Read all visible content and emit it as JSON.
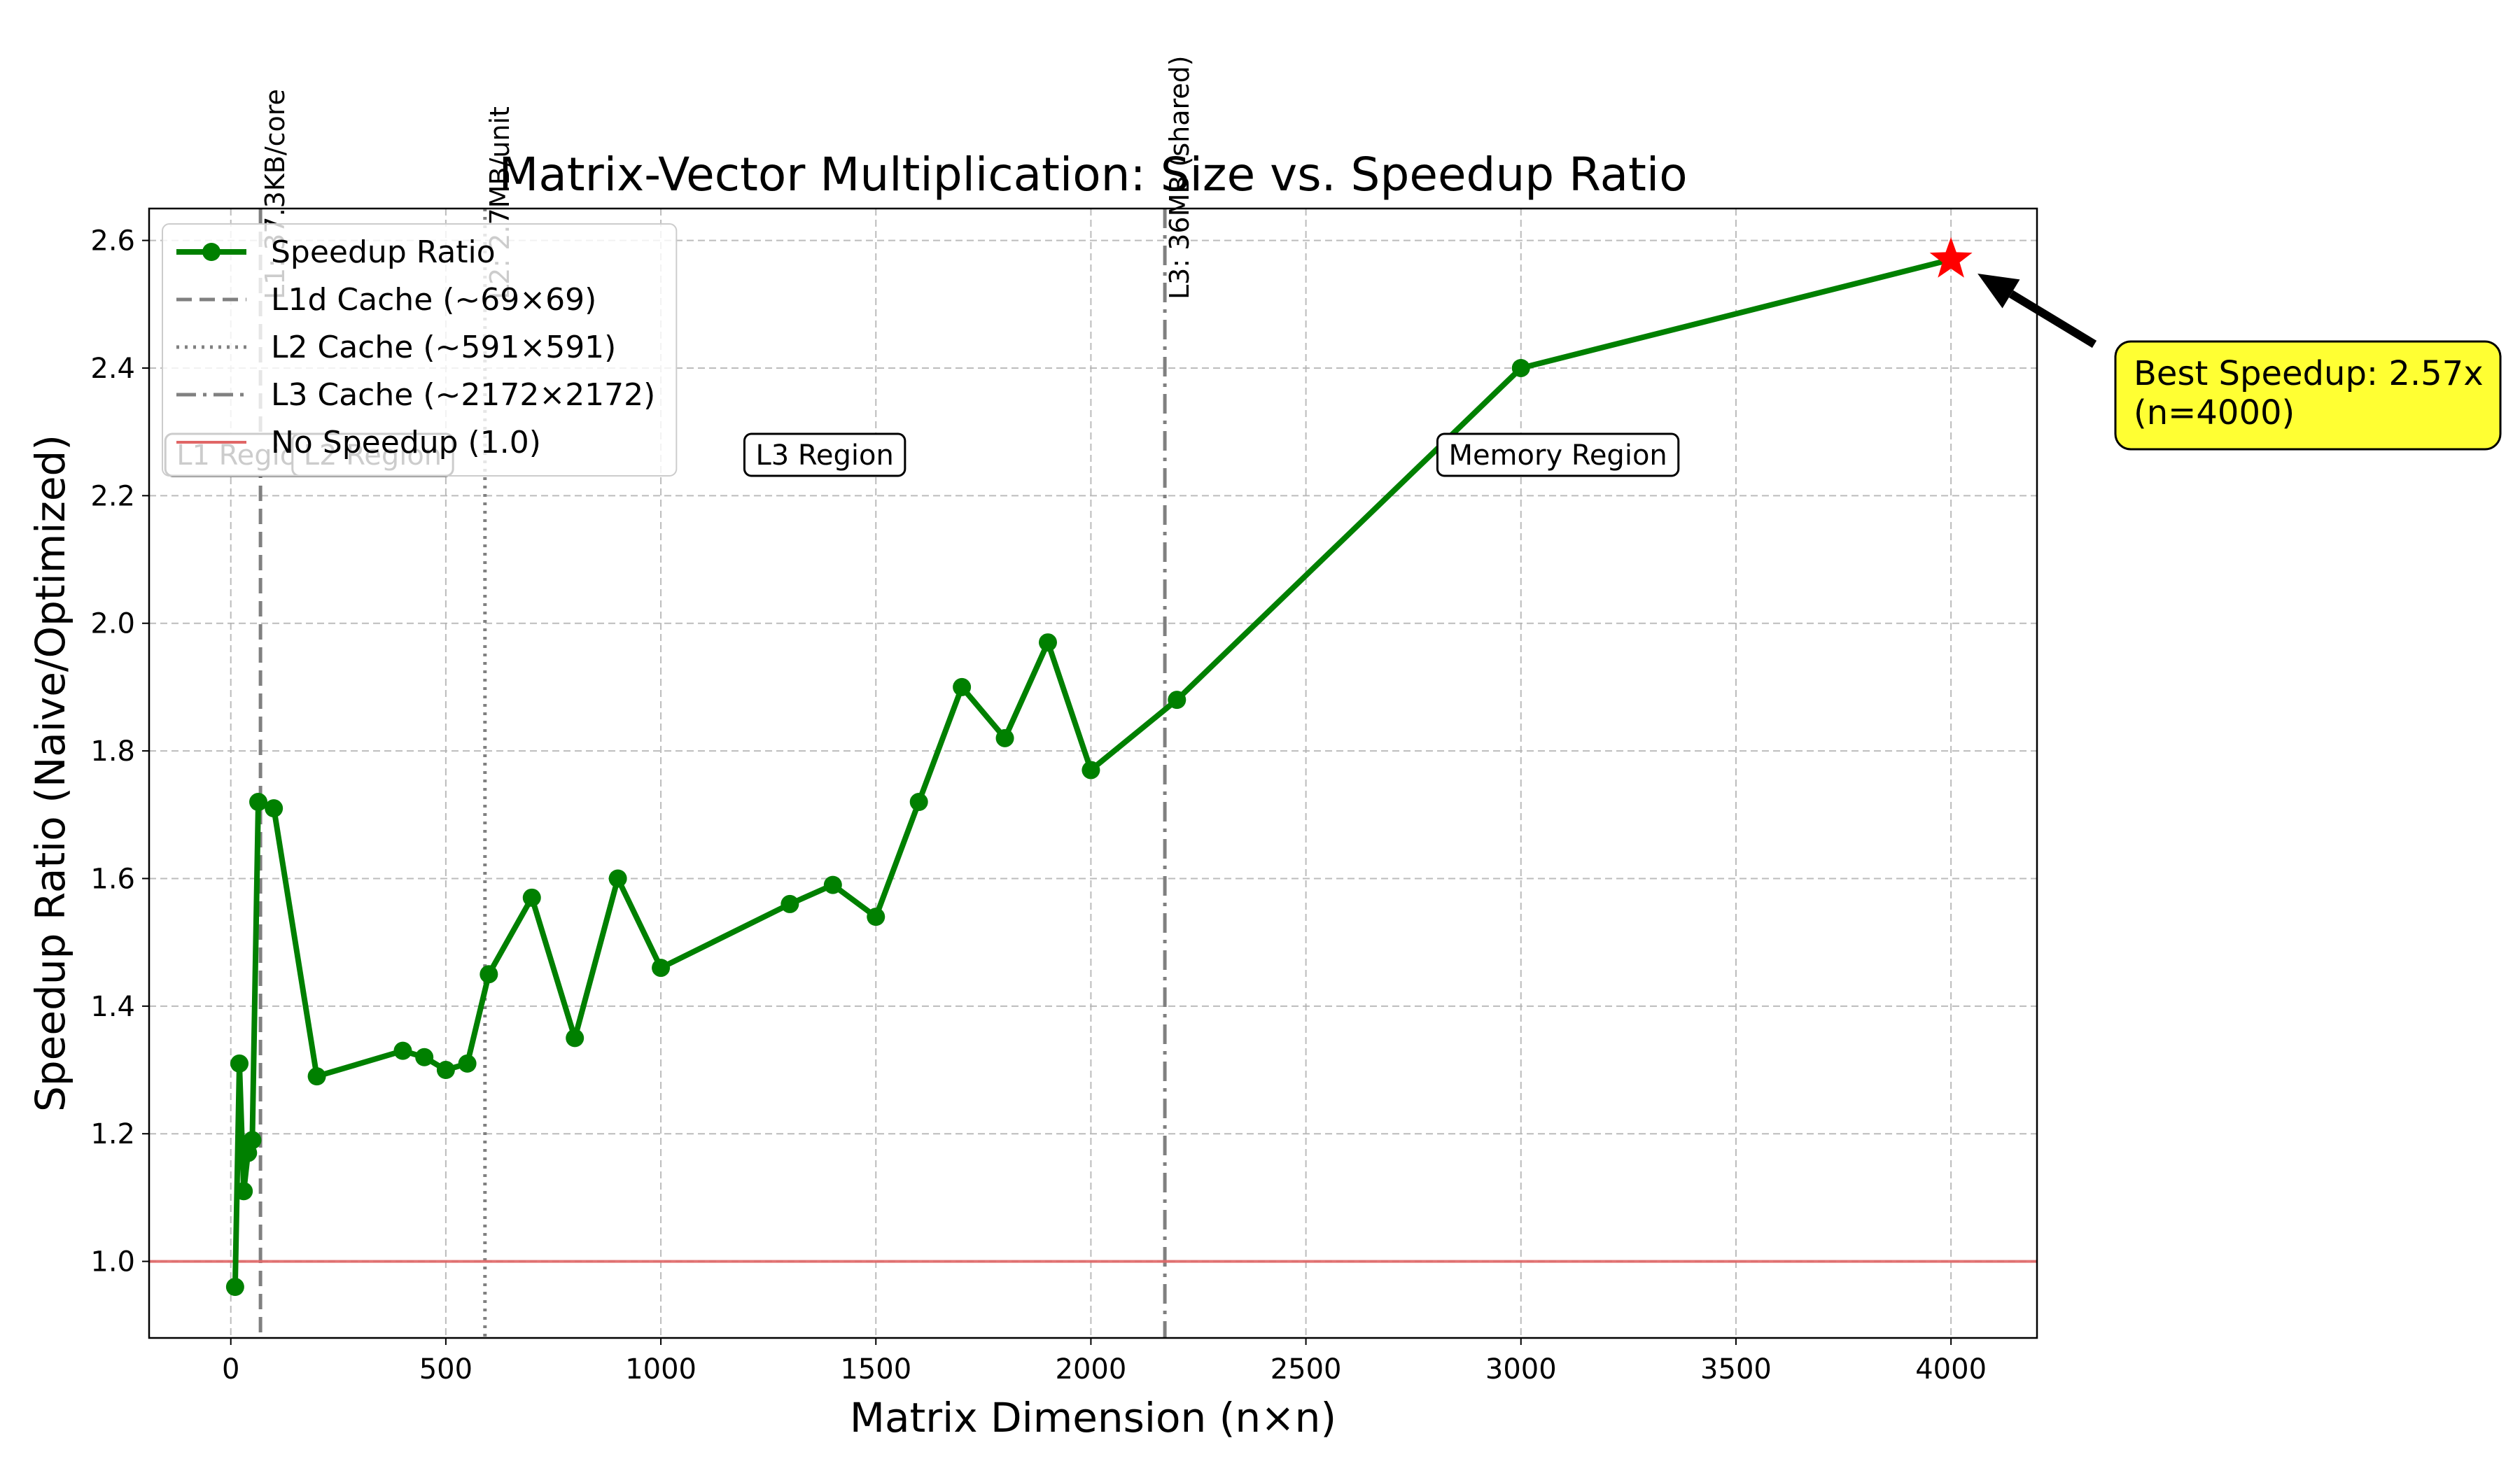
{
  "chart_data": {
    "type": "line",
    "title": "Matrix-Vector Multiplication: Size vs. Speedup Ratio",
    "xlabel": "Matrix Dimension (n×n)",
    "ylabel": "Speedup Ratio (Naive/Optimized)",
    "xlim": [
      -190,
      4200
    ],
    "ylim": [
      0.88,
      2.65
    ],
    "xticks": [
      0,
      500,
      1000,
      1500,
      2000,
      2500,
      3000,
      3500,
      4000
    ],
    "xtick_labels": [
      "0",
      "500",
      "1000",
      "1500",
      "2000",
      "2500",
      "3000",
      "3500",
      "4000"
    ],
    "yticks": [
      1.0,
      1.2,
      1.4,
      1.6,
      1.8,
      2.0,
      2.2,
      2.4,
      2.6
    ],
    "ytick_labels": [
      "1.0",
      "1.2",
      "1.4",
      "1.6",
      "1.8",
      "2.0",
      "2.2",
      "2.4",
      "2.6"
    ],
    "grid": true,
    "legend_position": "upper left",
    "series": [
      {
        "name": "Speedup Ratio",
        "color": "#008000",
        "marker": "circle",
        "x": [
          10,
          20,
          30,
          40,
          50,
          64,
          100,
          200,
          400,
          450,
          500,
          550,
          600,
          700,
          800,
          900,
          1000,
          1300,
          1400,
          1500,
          1600,
          1700,
          1800,
          1900,
          2000,
          2200,
          3000,
          4000
        ],
        "y": [
          0.96,
          1.31,
          1.11,
          1.17,
          1.19,
          1.72,
          1.71,
          1.29,
          1.33,
          1.32,
          1.3,
          1.31,
          1.45,
          1.57,
          1.35,
          1.6,
          1.46,
          1.56,
          1.59,
          1.54,
          1.72,
          1.9,
          1.82,
          1.97,
          1.77,
          1.88,
          2.4,
          2.57
        ]
      }
    ],
    "reference_lines": [
      {
        "legend": "L1d Cache (~69×69)",
        "x": 69,
        "style": "dashed",
        "color": "#808080",
        "label": "L1: 37.3KB/core"
      },
      {
        "legend": "L2 Cache (~591×591)",
        "x": 591,
        "style": "dotted",
        "color": "#808080",
        "label": "L2: 2.7MB/unit"
      },
      {
        "legend": "L3 Cache (~2172×2172)",
        "x": 2172,
        "style": "dashdot",
        "color": "#808080",
        "label": "L3: 36MB (shared)"
      },
      {
        "legend": "No Speedup (1.0)",
        "y": 1.0,
        "style": "solid",
        "color": "#e06666"
      }
    ],
    "regions": [
      {
        "label": "L1 Region",
        "x": 34.5
      },
      {
        "label": "L2 Region",
        "x": 330
      },
      {
        "label": "L3 Region",
        "x": 1381
      },
      {
        "label": "Memory Region",
        "x": 3086
      }
    ],
    "best_point": {
      "x": 4000,
      "y": 2.57,
      "marker": "star",
      "color": "#ff0000",
      "annotation_line1": "Best Speedup: 2.57x",
      "annotation_line2": "(n=4000)",
      "annotation_bg": "#ffff33"
    }
  }
}
